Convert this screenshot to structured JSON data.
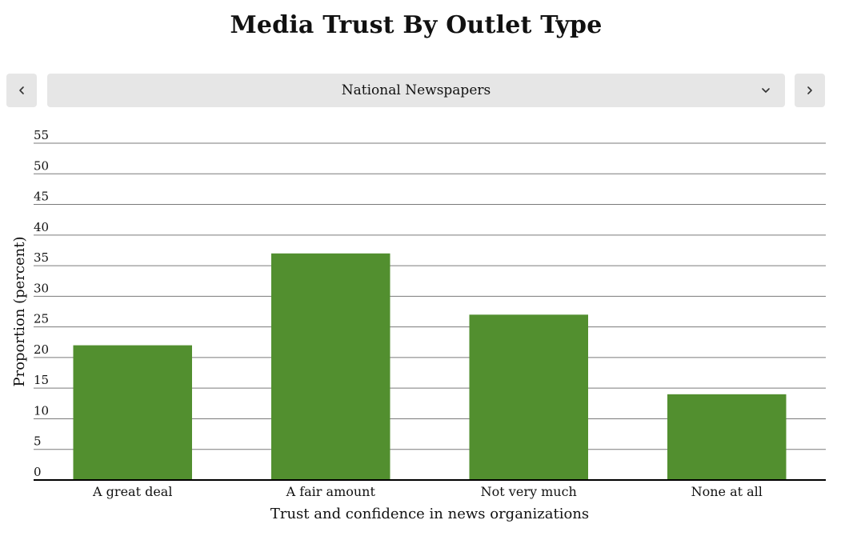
{
  "page": {
    "title": "Media Trust By Outlet Type"
  },
  "controls": {
    "prev_icon": "chevron-left-icon",
    "next_icon": "chevron-right-icon",
    "dropdown_icon": "chevron-down-icon",
    "selected_outlet": "National Newspapers"
  },
  "chart_data": {
    "type": "bar",
    "title": "Media Trust By Outlet Type",
    "categories": [
      "A great deal",
      "A fair amount",
      "Not very much",
      "None at all"
    ],
    "values": [
      22,
      37,
      27,
      14
    ],
    "xlabel": "Trust and confidence in news organizations",
    "ylabel": "Proportion (percent)",
    "ylim": [
      0,
      55
    ],
    "yticks": [
      0,
      5,
      10,
      15,
      20,
      25,
      30,
      35,
      40,
      45,
      50,
      55
    ],
    "grid": true,
    "bar_color": "#528f2f",
    "legend": "none"
  }
}
